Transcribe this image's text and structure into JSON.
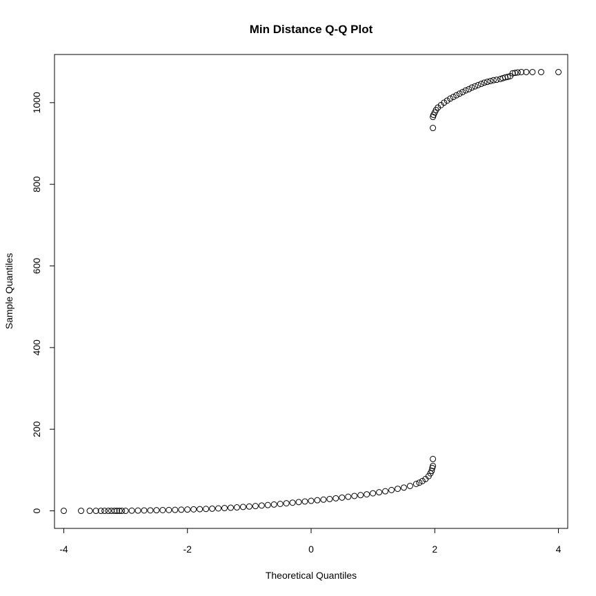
{
  "chart_data": {
    "type": "scatter",
    "title": "Min Distance Q-Q Plot",
    "xlabel": "Theoretical Quantiles",
    "ylabel": "Sample Quantiles",
    "xlim": [
      -4.15,
      4.15
    ],
    "ylim": [
      -43,
      1118
    ],
    "x_ticks": [
      -4,
      -2,
      0,
      2,
      4
    ],
    "x_tick_labels": [
      "-4",
      "-2",
      "0",
      "2",
      "4"
    ],
    "y_ticks": [
      0,
      200,
      400,
      600,
      800,
      1000
    ],
    "y_tick_labels": [
      "0",
      "200",
      "400",
      "600",
      "800",
      "1000"
    ],
    "grid": false,
    "legend": "none",
    "marker": "open-circle",
    "series": [
      {
        "points": [
          [
            -4.0,
            0
          ],
          [
            -3.72,
            0
          ],
          [
            -3.58,
            0
          ],
          [
            -3.48,
            0
          ],
          [
            -3.4,
            0
          ],
          [
            -3.34,
            0
          ],
          [
            -3.28,
            0
          ],
          [
            -3.23,
            0
          ],
          [
            -3.18,
            0
          ],
          [
            -3.14,
            0
          ],
          [
            -3.1,
            0
          ],
          [
            -3.06,
            0
          ],
          [
            -3.0,
            0
          ],
          [
            -2.9,
            0.5
          ],
          [
            -2.8,
            0.7
          ],
          [
            -2.7,
            1
          ],
          [
            -2.6,
            1.2
          ],
          [
            -2.5,
            1.5
          ],
          [
            -2.4,
            1.8
          ],
          [
            -2.3,
            2
          ],
          [
            -2.2,
            2.4
          ],
          [
            -2.1,
            2.8
          ],
          [
            -2.0,
            3.2
          ],
          [
            -1.9,
            3.7
          ],
          [
            -1.8,
            4.2
          ],
          [
            -1.7,
            4.7
          ],
          [
            -1.6,
            5.3
          ],
          [
            -1.5,
            6
          ],
          [
            -1.4,
            6.8
          ],
          [
            -1.3,
            7.6
          ],
          [
            -1.2,
            8.5
          ],
          [
            -1.1,
            9.5
          ],
          [
            -1.0,
            10.6
          ],
          [
            -0.9,
            11.7
          ],
          [
            -0.8,
            13
          ],
          [
            -0.7,
            14.2
          ],
          [
            -0.6,
            15.5
          ],
          [
            -0.5,
            17
          ],
          [
            -0.4,
            18.5
          ],
          [
            -0.3,
            20
          ],
          [
            -0.2,
            21.5
          ],
          [
            -0.1,
            23
          ],
          [
            0.0,
            24.5
          ],
          [
            0.1,
            26
          ],
          [
            0.2,
            27.5
          ],
          [
            0.3,
            29
          ],
          [
            0.4,
            30.8
          ],
          [
            0.5,
            32.5
          ],
          [
            0.6,
            34.5
          ],
          [
            0.7,
            36.5
          ],
          [
            0.8,
            38.5
          ],
          [
            0.9,
            40.5
          ],
          [
            1.0,
            43
          ],
          [
            1.1,
            45.5
          ],
          [
            1.2,
            48
          ],
          [
            1.3,
            51
          ],
          [
            1.4,
            54
          ],
          [
            1.5,
            57
          ],
          [
            1.6,
            61
          ],
          [
            1.7,
            66
          ],
          [
            1.75,
            69
          ],
          [
            1.8,
            73
          ],
          [
            1.85,
            78
          ],
          [
            1.9,
            85
          ],
          [
            1.93,
            92
          ],
          [
            1.95,
            98
          ],
          [
            1.96,
            105
          ],
          [
            1.97,
            110
          ],
          [
            1.97,
            127
          ],
          [
            1.97,
            938
          ],
          [
            1.97,
            965
          ],
          [
            1.98,
            970
          ],
          [
            2.0,
            976
          ],
          [
            2.02,
            982
          ],
          [
            2.05,
            988
          ],
          [
            2.1,
            994
          ],
          [
            2.15,
            1000
          ],
          [
            2.2,
            1005
          ],
          [
            2.25,
            1010
          ],
          [
            2.3,
            1014
          ],
          [
            2.35,
            1018
          ],
          [
            2.4,
            1022
          ],
          [
            2.45,
            1026
          ],
          [
            2.5,
            1030
          ],
          [
            2.55,
            1033
          ],
          [
            2.6,
            1037
          ],
          [
            2.65,
            1040
          ],
          [
            2.7,
            1043
          ],
          [
            2.75,
            1046
          ],
          [
            2.8,
            1049
          ],
          [
            2.85,
            1051
          ],
          [
            2.9,
            1053
          ],
          [
            2.95,
            1055
          ],
          [
            3.0,
            1056
          ],
          [
            3.06,
            1058
          ],
          [
            3.1,
            1060
          ],
          [
            3.14,
            1062
          ],
          [
            3.18,
            1063
          ],
          [
            3.22,
            1065
          ],
          [
            3.26,
            1072
          ],
          [
            3.3,
            1073
          ],
          [
            3.34,
            1074
          ],
          [
            3.4,
            1075
          ],
          [
            3.48,
            1075
          ],
          [
            3.58,
            1075
          ],
          [
            3.72,
            1075
          ],
          [
            4.0,
            1075
          ]
        ]
      }
    ]
  }
}
